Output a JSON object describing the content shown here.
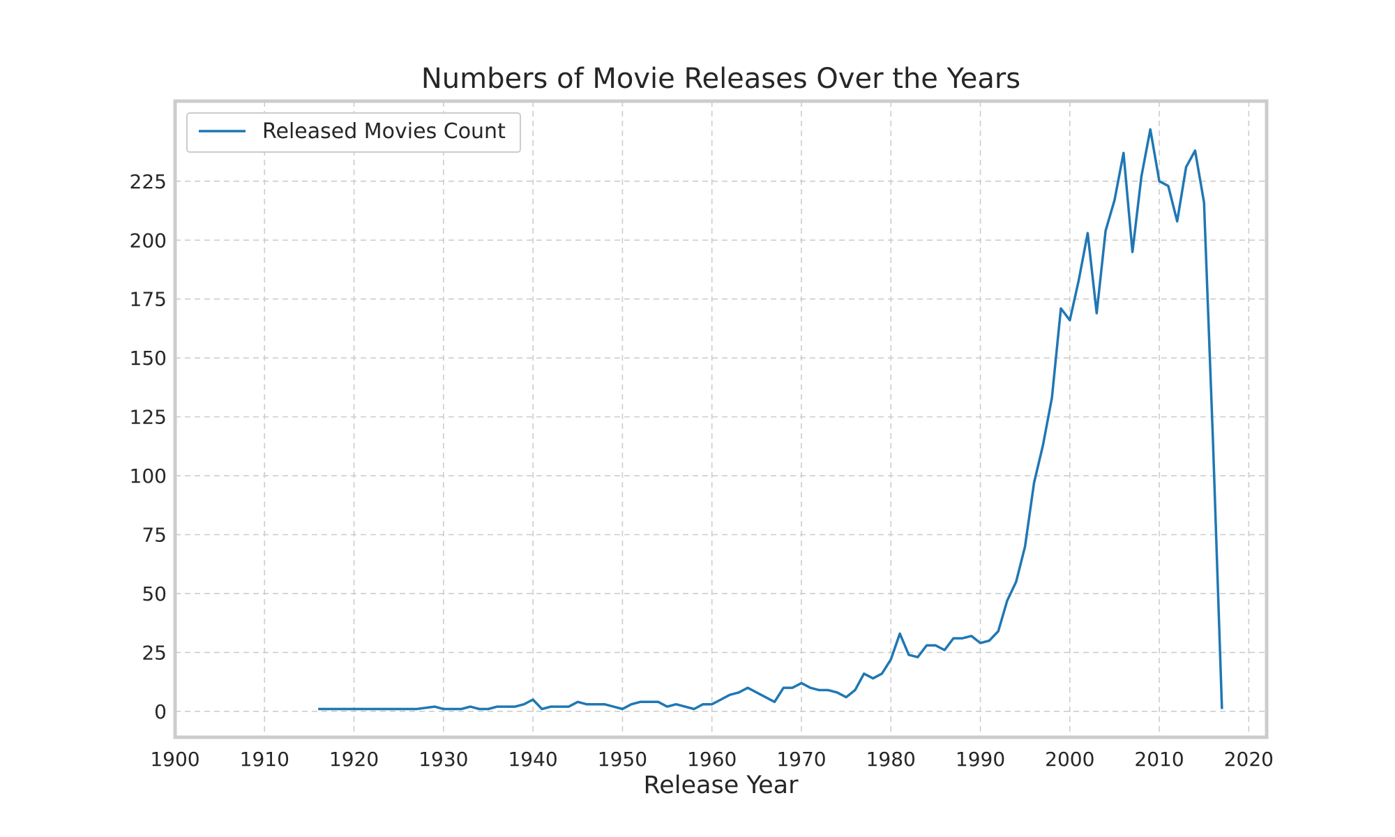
{
  "chart_data": {
    "type": "line",
    "title": "Numbers of Movie Releases Over the Years",
    "xlabel": "Release Year",
    "ylabel": "",
    "xlim": [
      1900,
      2022
    ],
    "ylim": [
      -11,
      259
    ],
    "grid": true,
    "legend_position": "top-left",
    "x_ticks": [
      1900,
      1910,
      1920,
      1930,
      1940,
      1950,
      1960,
      1970,
      1980,
      1990,
      2000,
      2010,
      2020
    ],
    "y_ticks": [
      0,
      25,
      50,
      75,
      100,
      125,
      150,
      175,
      200,
      225
    ],
    "series": [
      {
        "name": "Released Movies Count",
        "color": "#1f77b4",
        "x": [
          1916,
          1917,
          1918,
          1919,
          1920,
          1921,
          1922,
          1923,
          1924,
          1925,
          1926,
          1927,
          1928,
          1929,
          1930,
          1931,
          1932,
          1933,
          1934,
          1935,
          1936,
          1937,
          1938,
          1939,
          1940,
          1941,
          1942,
          1943,
          1944,
          1945,
          1946,
          1947,
          1948,
          1949,
          1950,
          1951,
          1952,
          1953,
          1954,
          1955,
          1956,
          1957,
          1958,
          1959,
          1960,
          1961,
          1962,
          1963,
          1964,
          1965,
          1966,
          1967,
          1968,
          1969,
          1970,
          1971,
          1972,
          1973,
          1974,
          1975,
          1976,
          1977,
          1978,
          1979,
          1980,
          1981,
          1982,
          1983,
          1984,
          1985,
          1986,
          1987,
          1988,
          1989,
          1990,
          1991,
          1992,
          1993,
          1994,
          1995,
          1996,
          1997,
          1998,
          1999,
          2000,
          2001,
          2002,
          2003,
          2004,
          2005,
          2006,
          2007,
          2008,
          2009,
          2010,
          2011,
          2012,
          2013,
          2014,
          2015,
          2016,
          2017
        ],
        "values": [
          1,
          1,
          1,
          1,
          1,
          1,
          1,
          1,
          1,
          1,
          1,
          1,
          1.5,
          2,
          1,
          1,
          1,
          2,
          1,
          1,
          2,
          2,
          2,
          3,
          5,
          1,
          2,
          2,
          2,
          4,
          3,
          3,
          3,
          2,
          1,
          3,
          4,
          4,
          4,
          2,
          3,
          2,
          1,
          3,
          3,
          5,
          7,
          8,
          10,
          8,
          6,
          4,
          10,
          10,
          12,
          10,
          9,
          9,
          8,
          6,
          9,
          16,
          14,
          16,
          22,
          33,
          24,
          23,
          28,
          28,
          26,
          31,
          31,
          32,
          29,
          30,
          34,
          47,
          55,
          70,
          97,
          113,
          133,
          171,
          166,
          183,
          203,
          169,
          204,
          217,
          237,
          195,
          227,
          247,
          225,
          223,
          208,
          231,
          238,
          216,
          115,
          1
        ]
      }
    ]
  }
}
